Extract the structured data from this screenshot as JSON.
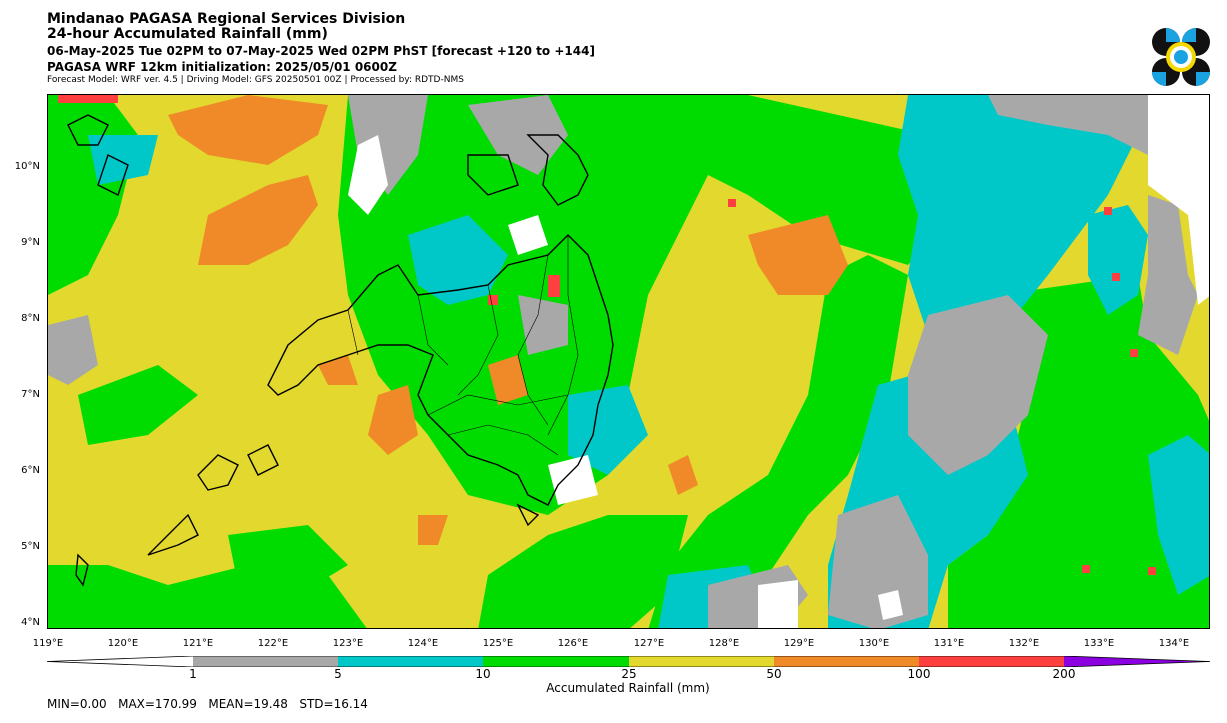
{
  "header": {
    "title": "Mindanao PAGASA Regional Services Division",
    "subtitle": "24-hour Accumulated Rainfall (mm)",
    "period": "06-May-2025 Tue 02PM to 07-May-2025 Wed 02PM PhST [forecast +120 to +144]",
    "initialization": "PAGASA WRF 12km initialization: 2025/05/01 0600Z",
    "model_info": "Forecast Model: WRF ver. 4.5 | Driving Model: GFS 20250501 00Z | Processed by: RDTD-NMS"
  },
  "logo": {
    "icon": "pagasa-logo-icon"
  },
  "map": {
    "lat_labels": [
      "10°N",
      "9°N",
      "8°N",
      "7°N",
      "6°N",
      "5°N",
      "4°N"
    ],
    "lon_labels": [
      "119°E",
      "120°E",
      "121°E",
      "122°E",
      "123°E",
      "124°E",
      "125°E",
      "126°E",
      "127°E",
      "128°E",
      "129°E",
      "130°E",
      "131°E",
      "132°E",
      "133°E",
      "134°E"
    ]
  },
  "colorbar": {
    "title": "Accumulated Rainfall (mm)",
    "ticks": [
      "1",
      "5",
      "10",
      "25",
      "50",
      "100",
      "200"
    ],
    "colors": [
      "#ffffff",
      "#a8a8a8",
      "#00c8c8",
      "#00dc00",
      "#e3d92e",
      "#f08a28",
      "#ff4040",
      "#8a00e0"
    ]
  },
  "stats": "MIN=0.00   MAX=170.99   MEAN=19.48   STD=16.14"
}
